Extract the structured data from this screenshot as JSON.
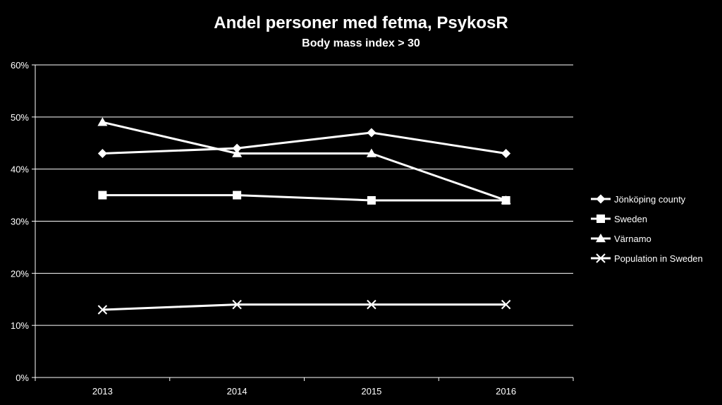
{
  "chart_data": {
    "type": "line",
    "title": "Andel personer med fetma, PsykosR",
    "subtitle": "Body mass index > 30",
    "xlabel": "",
    "ylabel": "",
    "categories": [
      "2013",
      "2014",
      "2015",
      "2016"
    ],
    "ylim": [
      0,
      60
    ],
    "y_ticks": [
      "0%",
      "10%",
      "20%",
      "30%",
      "40%",
      "50%",
      "60%"
    ],
    "grid": true,
    "legend_position": "right",
    "series": [
      {
        "name": "Jönköping county",
        "marker": "diamond",
        "values": [
          43,
          44,
          47,
          43
        ]
      },
      {
        "name": "Sweden",
        "marker": "square",
        "values": [
          35,
          35,
          34,
          34
        ]
      },
      {
        "name": "Värnamo",
        "marker": "triangle",
        "values": [
          49,
          43,
          43,
          34
        ]
      },
      {
        "name": "Population in Sweden",
        "marker": "x",
        "values": [
          13,
          14,
          14,
          14
        ]
      }
    ],
    "colors": {
      "background": "#000000",
      "line": "#ffffff",
      "grid": "#ffffff"
    }
  }
}
